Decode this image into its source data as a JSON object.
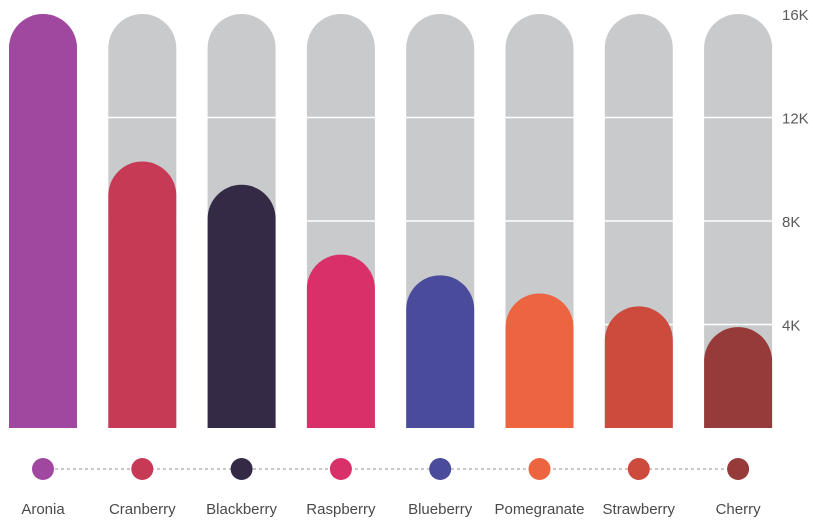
{
  "chart_data": {
    "type": "bar",
    "categories": [
      "Aronia",
      "Cranberry",
      "Blackberry",
      "Raspberry",
      "Blueberry",
      "Pomegranate",
      "Strawberry",
      "Cherry"
    ],
    "values": [
      16000,
      10300,
      9400,
      6700,
      5900,
      5200,
      4700,
      3900
    ],
    "colors": [
      "#a0479f",
      "#c73a56",
      "#352a45",
      "#d9306a",
      "#4b4b9c",
      "#ec6440",
      "#cc4b3c",
      "#973a3a"
    ],
    "track_color": "#c8cacc",
    "grid_color": "#ffffff",
    "ylim": [
      0,
      16000
    ],
    "yticks": [
      {
        "value": 4000,
        "label": "4K"
      },
      {
        "value": 8000,
        "label": "8K"
      },
      {
        "value": 12000,
        "label": "12K"
      },
      {
        "value": 16000,
        "label": "16K"
      }
    ],
    "legend": "bottom",
    "grid": true
  }
}
